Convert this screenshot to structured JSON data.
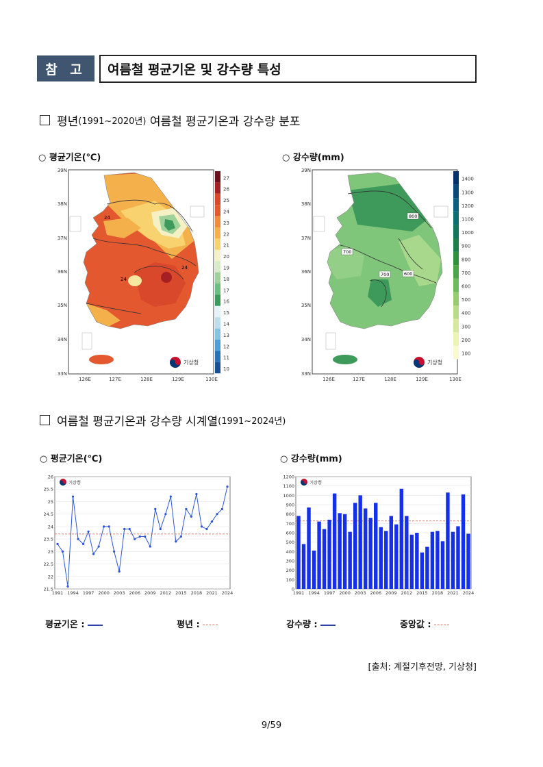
{
  "header": {
    "tag": "참 고",
    "title": "여름철 평균기온 및 강수량 특성"
  },
  "section1": {
    "prefix": "평년",
    "years": "(1991~2020년)",
    "suffix": "여름철 평균기온과 강수량 분포"
  },
  "section2": {
    "prefix": "여름철 평균기온과 강수량 시계열",
    "years": "(1991~2024년)"
  },
  "map_temp": {
    "label": "○ 평균기온(℃)",
    "lat_ticks": [
      "39N",
      "38N",
      "37N",
      "36N",
      "35N",
      "34N",
      "33N"
    ],
    "lon_ticks": [
      "126E",
      "127E",
      "128E",
      "129E",
      "130E"
    ],
    "colorbar": [
      "27",
      "26",
      "25",
      "24",
      "23",
      "22",
      "21",
      "20",
      "19",
      "18",
      "17",
      "16",
      "15",
      "14",
      "13",
      "12",
      "11",
      "10"
    ],
    "contour_labels": [
      "24",
      "24",
      "24"
    ],
    "logo": "기상청"
  },
  "map_precip": {
    "label": "○ 강수량(mm)",
    "lat_ticks": [
      "39N",
      "38N",
      "37N",
      "36N",
      "35N",
      "34N",
      "33N"
    ],
    "lon_ticks": [
      "126E",
      "127E",
      "128E",
      "129E",
      "130E"
    ],
    "colorbar": [
      "1400",
      "1300",
      "1200",
      "1100",
      "1000",
      "900",
      "800",
      "700",
      "600",
      "500",
      "400",
      "300",
      "200",
      "100"
    ],
    "contour_labels": [
      "800",
      "700",
      "700",
      "600"
    ],
    "logo": "기상청"
  },
  "chart_labels": {
    "temp": "○ 평균기온(℃)",
    "precip": "○ 강수량(mm)",
    "temp_legend_series": "평균기온 :",
    "temp_legend_normal": "평년 :",
    "precip_legend_series": "강수량 :",
    "precip_legend_median": "중앙값 :",
    "logo": "기상청"
  },
  "chart_data": [
    {
      "type": "line",
      "title": "평균기온(℃)",
      "x": [
        1991,
        1992,
        1993,
        1994,
        1995,
        1996,
        1997,
        1998,
        1999,
        2000,
        2001,
        2002,
        2003,
        2004,
        2005,
        2006,
        2007,
        2008,
        2009,
        2010,
        2011,
        2012,
        2013,
        2014,
        2015,
        2016,
        2017,
        2018,
        2019,
        2020,
        2021,
        2022,
        2023,
        2024
      ],
      "x_tick_labels": [
        "1991",
        "1994",
        "1997",
        "2000",
        "2003",
        "2006",
        "2009",
        "2012",
        "2015",
        "2018",
        "2021",
        "2024"
      ],
      "series": [
        {
          "name": "평균기온",
          "values": [
            23.3,
            23.0,
            21.6,
            25.2,
            23.5,
            23.3,
            23.8,
            22.9,
            23.2,
            24.0,
            24.0,
            23.0,
            22.2,
            23.9,
            23.9,
            23.5,
            23.6,
            23.6,
            23.2,
            24.7,
            23.9,
            24.5,
            25.2,
            23.4,
            23.6,
            24.7,
            24.4,
            25.3,
            24.0,
            23.9,
            24.2,
            24.5,
            24.7,
            25.6
          ]
        }
      ],
      "reference_line": {
        "name": "평년",
        "value": 23.7
      },
      "ylim": [
        21.5,
        26
      ],
      "y_ticks": [
        "21.5",
        "22",
        "22.5",
        "23",
        "23.5",
        "24",
        "24.5",
        "25",
        "25.5",
        "26"
      ],
      "grid": true
    },
    {
      "type": "bar",
      "title": "강수량(mm)",
      "x": [
        1991,
        1992,
        1993,
        1994,
        1995,
        1996,
        1997,
        1998,
        1999,
        2000,
        2001,
        2002,
        2003,
        2004,
        2005,
        2006,
        2007,
        2008,
        2009,
        2010,
        2011,
        2012,
        2013,
        2014,
        2015,
        2016,
        2017,
        2018,
        2019,
        2020,
        2021,
        2022,
        2023,
        2024
      ],
      "x_tick_labels": [
        "1991",
        "1994",
        "1997",
        "2000",
        "2003",
        "2006",
        "2009",
        "2012",
        "2015",
        "2018",
        "2021",
        "2024"
      ],
      "series": [
        {
          "name": "강수량",
          "values": [
            780,
            480,
            870,
            410,
            720,
            640,
            740,
            1020,
            810,
            800,
            610,
            920,
            1000,
            860,
            760,
            920,
            660,
            620,
            780,
            690,
            1070,
            780,
            580,
            600,
            390,
            450,
            610,
            620,
            510,
            1030,
            610,
            670,
            1010,
            590
          ]
        }
      ],
      "reference_line": {
        "name": "중앙값",
        "value": 727
      },
      "ylim": [
        0,
        1200
      ],
      "y_ticks": [
        "0",
        "100",
        "200",
        "300",
        "400",
        "500",
        "600",
        "700",
        "800",
        "900",
        "1000",
        "1100",
        "1200"
      ],
      "grid": true
    }
  ],
  "source": "[출처: 계절기후전망, 기상청]",
  "page_number": "9/59",
  "colors": {
    "header_tag": "#3f5570",
    "line": "#2b55d6",
    "bar": "#1530e8",
    "normal_line": "#d26a5a"
  }
}
